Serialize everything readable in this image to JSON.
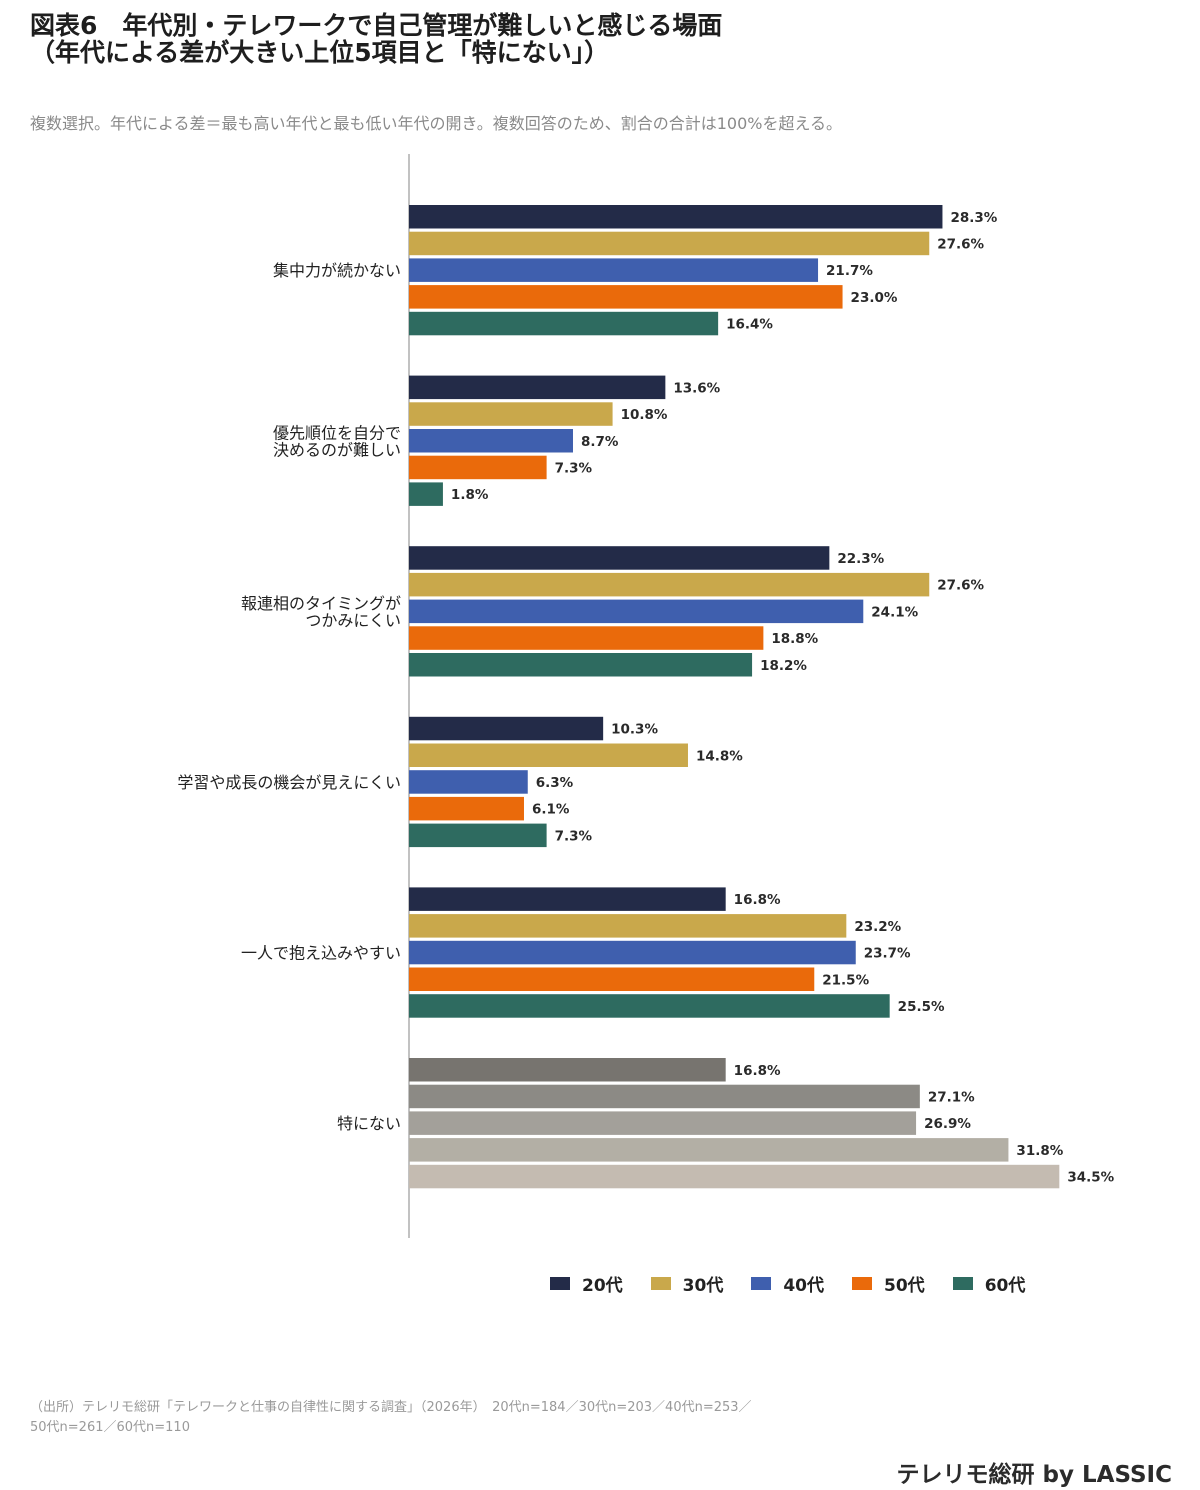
{
  "title_lines": [
    "図表6　年代別・テレワークで自己管理が難しいと感じる場面",
    "（年代による差が大きい上位5項目と「特にない」）"
  ],
  "subtitle": "複数選択。年代による差＝最も高い年代と最も低い年代の開き。複数回答のため、割合の合計は100%を超える。",
  "legend": [
    {
      "label": "20代",
      "color": "#232b48"
    },
    {
      "label": "30代",
      "color": "#c9a84b"
    },
    {
      "label": "40代",
      "color": "#3f5fae"
    },
    {
      "label": "50代",
      "color": "#ea6a0b"
    },
    {
      "label": "60代",
      "color": "#2e6b60"
    }
  ],
  "source_lines": [
    "（出所）テレリモ総研「テレワークと仕事の自律性に関する調査」（2026年）　20代n=184／30代n=203／40代n=253／",
    "50代n=261／60代n=110"
  ],
  "brand": "テレリモ総研 by LASSIC",
  "chart_data": {
    "type": "bar",
    "orientation": "horizontal",
    "unit": "%",
    "categories": [
      [
        "集中力が続かない"
      ],
      [
        "優先順位を自分で",
        "決めるのが難しい"
      ],
      [
        "報連相のタイミングが",
        "つかみにくい"
      ],
      [
        "学習や成長の機会が見えにくい"
      ],
      [
        "一人で抱え込みやすい"
      ],
      [
        "特にない"
      ]
    ],
    "series": [
      {
        "name": "20代",
        "values": [
          28.3,
          13.6,
          22.3,
          10.3,
          16.8,
          16.8
        ]
      },
      {
        "name": "30代",
        "values": [
          27.6,
          10.8,
          27.6,
          14.8,
          23.2,
          27.1
        ]
      },
      {
        "name": "40代",
        "values": [
          21.7,
          8.7,
          24.1,
          6.3,
          23.7,
          26.9
        ]
      },
      {
        "name": "50代",
        "values": [
          23.0,
          7.3,
          18.8,
          6.1,
          21.5,
          31.8
        ]
      },
      {
        "name": "60代",
        "values": [
          16.4,
          1.8,
          18.2,
          7.3,
          25.5,
          34.5
        ]
      }
    ],
    "series_colors": [
      "#232b48",
      "#c9a84b",
      "#3f5fae",
      "#ea6a0b",
      "#2e6b60"
    ],
    "special_category_colors": [
      "#77746f",
      "#8c8a85",
      "#a3a09a",
      "#b3afa5",
      "#c4bbb1"
    ],
    "xlim": [
      0,
      35
    ],
    "grid": false,
    "legend_position": "bottom"
  }
}
